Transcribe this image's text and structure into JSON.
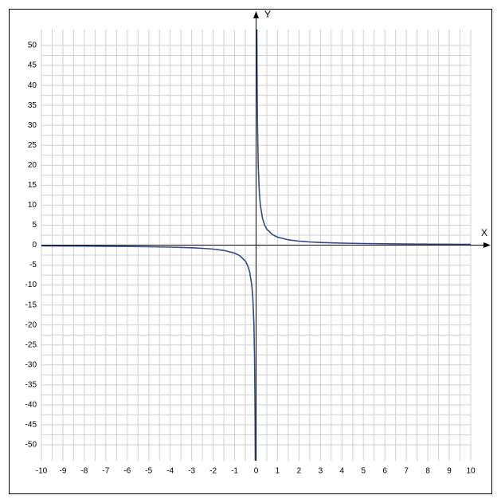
{
  "chart_data": {
    "type": "line",
    "x_axis_label": "X",
    "y_axis_label": "Y",
    "x": [
      -10,
      -8,
      -6,
      -5,
      -4,
      -3,
      -2.5,
      -2,
      -1.5,
      -1,
      -0.75,
      -0.5,
      -0.4,
      -0.3,
      -0.2,
      -0.15,
      -0.1,
      -0.07,
      -0.05,
      -0.04,
      -0.037,
      0,
      0.037,
      0.04,
      0.05,
      0.07,
      0.1,
      0.15,
      0.2,
      0.3,
      0.4,
      0.5,
      0.75,
      1,
      1.5,
      2,
      2.5,
      3,
      4,
      5,
      6,
      8,
      10
    ],
    "series": [
      {
        "color": "#2b4a8f",
        "values": [
          -0.2,
          -0.25,
          -0.33,
          -0.4,
          -0.5,
          -0.67,
          -0.8,
          -1,
          -1.33,
          -2,
          -2.67,
          -4,
          -5,
          -6.67,
          -10,
          -13.33,
          -20,
          -28.57,
          -40,
          -50,
          -54.05,
          null,
          54.05,
          50,
          40,
          28.57,
          20,
          13.33,
          10,
          6.67,
          5,
          4,
          2.67,
          2,
          1.33,
          1,
          0.8,
          0.67,
          0.5,
          0.4,
          0.33,
          0.25,
          0.2
        ]
      }
    ],
    "xlim": [
      -10,
      10
    ],
    "ylim": [
      -54,
      54
    ],
    "xticks": [
      -10,
      -9,
      -8,
      -7,
      -6,
      -5,
      -4,
      -3,
      -2,
      -1,
      0,
      1,
      2,
      3,
      4,
      5,
      6,
      7,
      8,
      9,
      10
    ],
    "yticks": [
      -50,
      -45,
      -40,
      -35,
      -30,
      -25,
      -20,
      -15,
      -10,
      -5,
      0,
      5,
      10,
      15,
      20,
      25,
      30,
      35,
      40,
      45,
      50
    ],
    "grid": true
  }
}
